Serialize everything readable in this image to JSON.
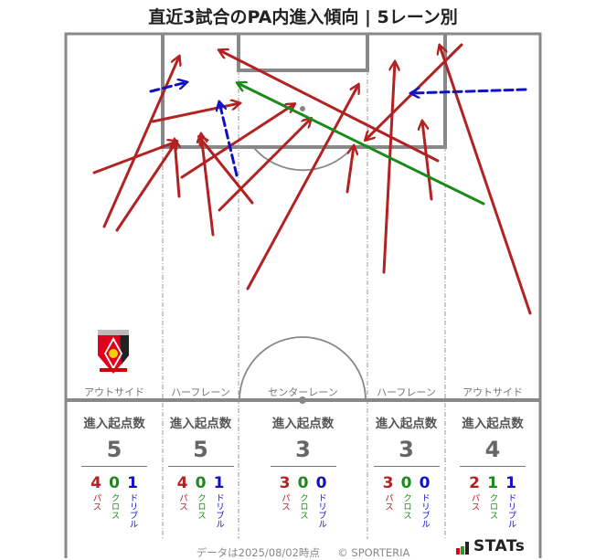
{
  "title": "直近3試合のPA内進入傾向 | 5レーン別",
  "colors": {
    "pass": "#b22222",
    "cross": "#1a8a1a",
    "dribble": "#1010c8",
    "field_line": "#888888"
  },
  "lanes": [
    {
      "label": "アウトサイド",
      "stats_heading": "進入起点数",
      "total": "5",
      "pass": "4",
      "cross": "0",
      "dribble": "1"
    },
    {
      "label": "ハーフレーン",
      "stats_heading": "進入起点数",
      "total": "5",
      "pass": "4",
      "cross": "0",
      "dribble": "1"
    },
    {
      "label": "センターレーン",
      "stats_heading": "進入起点数",
      "total": "3",
      "pass": "3",
      "cross": "0",
      "dribble": "0"
    },
    {
      "label": "ハーフレーン",
      "stats_heading": "進入起点数",
      "total": "3",
      "pass": "3",
      "cross": "0",
      "dribble": "0"
    },
    {
      "label": "アウトサイド",
      "stats_heading": "進入起点数",
      "total": "4",
      "pass": "2",
      "cross": "1",
      "dribble": "1"
    }
  ],
  "breakdown_labels": {
    "pass": "パス",
    "cross": "クロス",
    "dribble": "ドリブル"
  },
  "arrows": {
    "pass": [
      [
        114,
        248,
        196,
        62
      ],
      [
        128,
        252,
        193,
        155
      ],
      [
        103,
        189,
        193,
        155
      ],
      [
        167,
        133,
        262,
        113
      ],
      [
        196,
        215,
        191,
        153
      ],
      [
        233,
        257,
        220,
        147
      ],
      [
        276,
        222,
        218,
        150
      ],
      [
        199,
        194,
        322,
        114
      ],
      [
        240,
        230,
        340,
        130
      ],
      [
        271,
        316,
        392,
        93
      ],
      [
        380,
        210,
        387,
        160
      ],
      [
        479,
        176,
        240,
        55
      ],
      [
        505,
        49,
        400,
        153
      ],
      [
        420,
        298,
        432,
        68
      ],
      [
        472,
        218,
        462,
        133
      ],
      [
        580,
        343,
        481,
        50
      ]
    ],
    "cross": [
      [
        529,
        223,
        260,
        91
      ]
    ],
    "dribble": [
      [
        165,
        100,
        204,
        90
      ],
      [
        259,
        192,
        240,
        112
      ],
      [
        575,
        98,
        450,
        102
      ]
    ]
  },
  "footer": {
    "data_date": "データは2025/08/02時点",
    "copyright": "© SPORTERIA"
  },
  "stats_logo": {
    "text": "STATs"
  },
  "team_crest": "urawa-reds-crest"
}
